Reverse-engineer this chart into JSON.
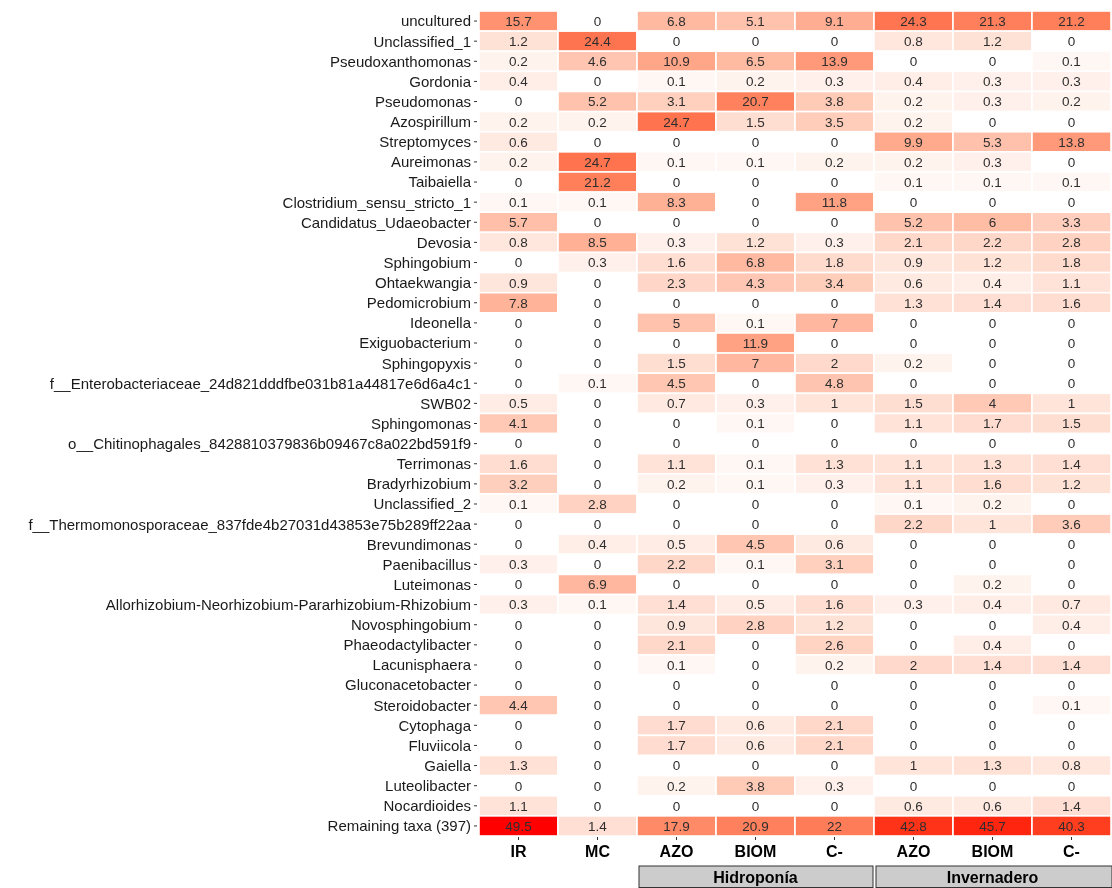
{
  "chart_data": [
    {
      "type": "heatmap",
      "categories": [
        "IR",
        "MC"
      ],
      "y_categories": [
        "uncultured",
        "Unclassified_1",
        "Pseudoxanthomonas",
        "Gordonia",
        "Pseudomonas",
        "Azospirillum",
        "Streptomyces",
        "Aureimonas",
        "Taibaiella",
        "Clostridium_sensu_stricto_1",
        "Candidatus_Udaeobacter",
        "Devosia",
        "Sphingobium",
        "Ohtaekwangia",
        "Pedomicrobium",
        "Ideonella",
        "Exiguobacterium",
        "Sphingopyxis",
        "f__Enterobacteriaceae_24d821dddfbe031b81a44817e6d6a4c1",
        "SWB02",
        "Sphingomonas",
        "o__Chitinophagales_8428810379836b09467c8a022bd591f9",
        "Terrimonas",
        "Bradyrhizobium",
        "Unclassified_2",
        "f__Thermomonosporaceae_837fde4b27031d43853e75b289ff22aa",
        "Brevundimonas",
        "Paenibacillus",
        "Luteimonas",
        "Allorhizobium-Neorhizobium-Pararhizobium-Rhizobium",
        "Novosphingobium",
        "Phaeodactylibacter",
        "Lacunisphaera",
        "Gluconacetobacter",
        "Steroidobacter",
        "Cytophaga",
        "Fluviicola",
        "Gaiella",
        "Luteolibacter",
        "Nocardioides",
        "Remaining taxa (397)"
      ],
      "cells": [
        [
          15.7,
          0
        ],
        [
          1.2,
          24.4
        ],
        [
          0.2,
          4.6
        ],
        [
          0.4,
          0
        ],
        [
          0,
          5.2
        ],
        [
          0.2,
          0.2
        ],
        [
          0.6,
          0
        ],
        [
          0.2,
          24.7
        ],
        [
          0,
          21.2
        ],
        [
          0.1,
          0.1
        ],
        [
          5.7,
          0
        ],
        [
          0.8,
          8.5
        ],
        [
          0,
          0.3
        ],
        [
          0.9,
          0
        ],
        [
          7.8,
          0
        ],
        [
          0,
          0
        ],
        [
          0,
          0
        ],
        [
          0,
          0
        ],
        [
          0,
          0.1
        ],
        [
          0.5,
          0
        ],
        [
          4.1,
          0
        ],
        [
          0,
          0
        ],
        [
          1.6,
          0
        ],
        [
          3.2,
          0
        ],
        [
          0.1,
          2.8
        ],
        [
          0,
          0
        ],
        [
          0,
          0.4
        ],
        [
          0.3,
          0
        ],
        [
          0,
          6.9
        ],
        [
          0.3,
          0.1
        ],
        [
          0,
          0
        ],
        [
          0,
          0
        ],
        [
          0,
          0
        ],
        [
          0,
          0
        ],
        [
          4.4,
          0
        ],
        [
          0,
          0
        ],
        [
          0,
          0
        ],
        [
          1.3,
          0
        ],
        [
          0,
          0
        ],
        [
          1.1,
          0
        ],
        [
          49.5,
          1.4
        ]
      ],
      "color": "#ff0000",
      "data_labels": true
    },
    {
      "type": "heatmap",
      "categories": [
        "AZO",
        "BIOM",
        "C-"
      ],
      "y_categories": [
        "uncultured",
        "Unclassified_1",
        "Pseudoxanthomonas",
        "Gordonia",
        "Pseudomonas",
        "Azospirillum",
        "Streptomyces",
        "Aureimonas",
        "Taibaiella",
        "Clostridium_sensu_stricto_1",
        "Candidatus_Udaeobacter",
        "Devosia",
        "Sphingobium",
        "Ohtaekwangia",
        "Pedomicrobium",
        "Ideonella",
        "Exiguobacterium",
        "Sphingopyxis",
        "f__Enterobacteriaceae_24d821dddfbe031b81a44817e6d6a4c1",
        "SWB02",
        "Sphingomonas",
        "o__Chitinophagales_8428810379836b09467c8a022bd591f9",
        "Terrimonas",
        "Bradyrhizobium",
        "Unclassified_2",
        "f__Thermomonosporaceae_837fde4b27031d43853e75b289ff22aa",
        "Brevundimonas",
        "Paenibacillus",
        "Luteimonas",
        "Allorhizobium-Neorhizobium-Pararhizobium-Rhizobium",
        "Novosphingobium",
        "Phaeodactylibacter",
        "Lacunisphaera",
        "Gluconacetobacter",
        "Steroidobacter",
        "Cytophaga",
        "Fluviicola",
        "Gaiella",
        "Luteolibacter",
        "Nocardioides",
        "Remaining taxa (397)"
      ],
      "cells": [
        [
          6.8,
          5.1,
          9.1
        ],
        [
          0,
          0,
          0
        ],
        [
          10.9,
          6.5,
          13.9
        ],
        [
          0.1,
          0.2,
          0.3
        ],
        [
          3.1,
          20.7,
          3.8
        ],
        [
          24.7,
          1.5,
          3.5
        ],
        [
          0,
          0,
          0
        ],
        [
          0.1,
          0.1,
          0.2
        ],
        [
          0,
          0,
          0
        ],
        [
          8.3,
          0,
          11.8
        ],
        [
          0,
          0,
          0
        ],
        [
          0.3,
          1.2,
          0.3
        ],
        [
          1.6,
          6.8,
          1.8
        ],
        [
          2.3,
          4.3,
          3.4
        ],
        [
          0,
          0,
          0
        ],
        [
          5,
          0.1,
          7
        ],
        [
          0,
          11.9,
          0
        ],
        [
          1.5,
          7,
          2
        ],
        [
          4.5,
          0,
          4.8
        ],
        [
          0.7,
          0.3,
          1
        ],
        [
          0,
          0.1,
          0
        ],
        [
          0,
          0,
          0
        ],
        [
          1.1,
          0.1,
          1.3
        ],
        [
          0.2,
          0.1,
          0.3
        ],
        [
          0,
          0,
          0
        ],
        [
          0,
          0,
          0
        ],
        [
          0.5,
          4.5,
          0.6
        ],
        [
          2.2,
          0.1,
          3.1
        ],
        [
          0,
          0,
          0
        ],
        [
          1.4,
          0.5,
          1.6
        ],
        [
          0.9,
          2.8,
          1.2
        ],
        [
          2.1,
          0,
          2.6
        ],
        [
          0.1,
          0,
          0.2
        ],
        [
          0,
          0,
          0
        ],
        [
          0,
          0,
          0
        ],
        [
          1.7,
          0.6,
          2.1
        ],
        [
          1.7,
          0.6,
          2.1
        ],
        [
          0,
          0,
          0
        ],
        [
          0.2,
          3.8,
          0.3
        ],
        [
          0,
          0,
          0
        ],
        [
          17.9,
          20.9,
          22
        ]
      ],
      "xlabel": "Hidroponía",
      "tick_labels": "x",
      "color": "#ff0000",
      "data_labels": true
    },
    {
      "type": "heatmap",
      "categories": [
        "AZO",
        "BIOM",
        "C-"
      ],
      "y_categories": [
        "uncultured",
        "Unclassified_1",
        "Pseudoxanthomonas",
        "Gordonia",
        "Pseudomonas",
        "Azospirillum",
        "Streptomyces",
        "Aureimonas",
        "Taibaiella",
        "Clostridium_sensu_stricto_1",
        "Candidatus_Udaeobacter",
        "Devosia",
        "Sphingobium",
        "Ohtaekwangia",
        "Pedomicrobium",
        "Ideonella",
        "Exiguobacterium",
        "Sphingopyxis",
        "f__Enterobacteriaceae_24d821dddfbe031b81a44817e6d6a4c1",
        "SWB02",
        "Sphingomonas",
        "o__Chitinophagales_8428810379836b09467c8a022bd591f9",
        "Terrimonas",
        "Bradyrhizobium",
        "Unclassified_2",
        "f__Thermomonosporaceae_837fde4b27031d43853e75b289ff22aa",
        "Brevundimonas",
        "Paenibacillus",
        "Luteimonas",
        "Allorhizobium-Neorhizobium-Pararhizobium-Rhizobium",
        "Novosphingobium",
        "Phaeodactylibacter",
        "Lacunisphaera",
        "Gluconacetobacter",
        "Steroidobacter",
        "Cytophaga",
        "Fluviicola",
        "Gaiella",
        "Luteolibacter",
        "Nocardioides",
        "Remaining taxa (397)"
      ],
      "cells": [
        [
          24.3,
          21.3,
          21.2
        ],
        [
          0.8,
          1.2,
          0
        ],
        [
          0,
          0,
          0.1
        ],
        [
          0.4,
          0.3,
          0.3
        ],
        [
          0.2,
          0.3,
          0.2
        ],
        [
          0.2,
          0,
          0
        ],
        [
          9.9,
          5.3,
          13.8
        ],
        [
          0.2,
          0.3,
          0
        ],
        [
          0.1,
          0.1,
          0.1
        ],
        [
          0,
          0,
          0
        ],
        [
          5.2,
          6,
          3.3
        ],
        [
          2.1,
          2.2,
          2.8
        ],
        [
          0.9,
          1.2,
          1.8
        ],
        [
          0.6,
          0.4,
          1.1
        ],
        [
          1.3,
          1.4,
          1.6
        ],
        [
          0,
          0,
          0
        ],
        [
          0,
          0,
          0
        ],
        [
          0.2,
          0,
          0
        ],
        [
          0,
          0,
          0
        ],
        [
          1.5,
          4,
          1
        ],
        [
          1.1,
          1.7,
          1.5
        ],
        [
          0,
          0,
          0
        ],
        [
          1.1,
          1.3,
          1.4
        ],
        [
          1.1,
          1.6,
          1.2
        ],
        [
          0.1,
          0.2,
          0
        ],
        [
          2.2,
          1,
          3.6
        ],
        [
          0,
          0,
          0
        ],
        [
          0,
          0,
          0
        ],
        [
          0,
          0.2,
          0
        ],
        [
          0.3,
          0.4,
          0.7
        ],
        [
          0,
          0,
          0.4
        ],
        [
          0,
          0.4,
          0
        ],
        [
          2,
          1.4,
          1.4
        ],
        [
          0,
          0,
          0
        ],
        [
          0,
          0,
          0.1
        ],
        [
          0,
          0,
          0
        ],
        [
          0,
          0,
          0
        ],
        [
          1,
          1.3,
          0.8
        ],
        [
          0,
          0,
          0
        ],
        [
          0.6,
          0.6,
          1.4
        ],
        [
          42.8,
          45.7,
          40.3
        ]
      ],
      "xlabel": "Invernadero",
      "tick_labels": "x",
      "color": "#ff0000",
      "data_labels": true
    }
  ]
}
